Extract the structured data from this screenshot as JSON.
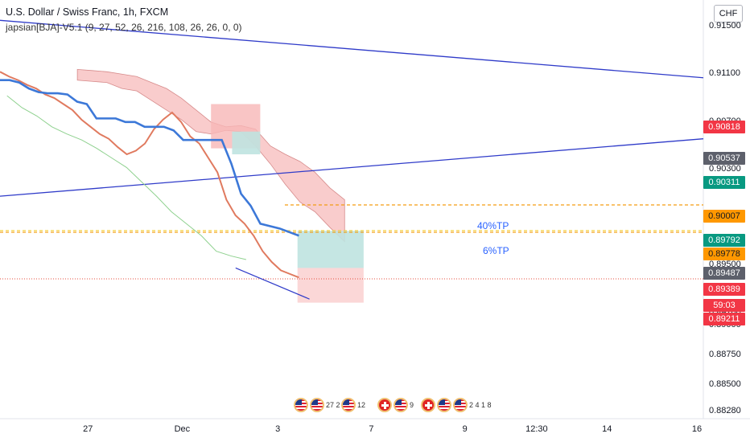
{
  "header": {
    "title": "U.S. Dollar / Swiss Franc, 1h, FXCM",
    "indicator": "japsian[BJA]-V5.1 (9, 27, 52, 26, 216, 108, 26, 26, 0, 0)"
  },
  "currency_button": "CHF",
  "colors": {
    "trend_line": "#2f3bc9",
    "price_line": "#e07a5f",
    "kijun_line": "#3c78d8",
    "cloud_bear": "#f7b6b6",
    "cloud_bull": "#a5d6a7",
    "tp_line": "#f39c12",
    "current_line": "#e74c3c",
    "badge_red": "#f23645",
    "badge_gray": "#5d606b",
    "badge_green": "#089981",
    "badge_orange": "#ff9800"
  },
  "chart_data": {
    "type": "line",
    "ylim": [
      0.8822,
      0.9172
    ],
    "y_ticks": [
      "0.91500",
      "0.91100",
      "0.90700",
      "0.90300",
      "0.89900",
      "0.89500",
      "0.89100",
      "0.89000",
      "0.88750",
      "0.88500",
      "0.88280"
    ],
    "x_ticks": [
      {
        "label": "27",
        "t": 0.125
      },
      {
        "label": "Dec",
        "t": 0.259
      },
      {
        "label": "3",
        "t": 0.395
      },
      {
        "label": "7",
        "t": 0.528
      },
      {
        "label": "9",
        "t": 0.661
      },
      {
        "label": "12:30",
        "t": 0.763
      },
      {
        "label": "14",
        "t": 0.863
      },
      {
        "label": "16",
        "t": 0.991
      }
    ],
    "price_badges": [
      {
        "value": "0.90818",
        "color": "red"
      },
      {
        "value": "0.90537",
        "color": "gray"
      },
      {
        "value": "0.90311",
        "color": "green"
      },
      {
        "value": "0.90007",
        "color": "orange"
      },
      {
        "value": "0.89792",
        "color": "green"
      },
      {
        "value": "0.89778",
        "color": "orange"
      },
      {
        "value": "0.89487",
        "color": "gray"
      },
      {
        "value": "0.89389",
        "color": "red"
      },
      {
        "value": "59:03",
        "color": "red"
      },
      {
        "value": "0.89211",
        "color": "red"
      }
    ],
    "annotations": [
      "40%TP",
      "6%TP"
    ],
    "price_series": [
      0.9112,
      0.9108,
      0.9105,
      0.9101,
      0.9098,
      0.9093,
      0.909,
      0.9085,
      0.908,
      0.9072,
      0.9066,
      0.906,
      0.9056,
      0.9049,
      0.9043,
      0.9046,
      0.9052,
      0.9064,
      0.9072,
      0.9078,
      0.907,
      0.9058,
      0.9052,
      0.904,
      0.9028,
      0.9005,
      0.8992,
      0.8985,
      0.8975,
      0.8962,
      0.8953,
      0.8946,
      0.8943,
      0.894
    ],
    "kijun_series": [
      0.9105,
      0.9105,
      0.9103,
      0.9098,
      0.9095,
      0.9094,
      0.9094,
      0.9093,
      0.9087,
      0.9085,
      0.9073,
      0.9073,
      0.9073,
      0.907,
      0.907,
      0.9066,
      0.9066,
      0.9066,
      0.9063,
      0.9055,
      0.9055,
      0.9055,
      0.9055,
      0.9055,
      0.9035,
      0.901,
      0.9,
      0.8985,
      0.8983,
      0.8981,
      0.8978,
      0.8975
    ],
    "lagging_series": [
      0.9092,
      0.9082,
      0.9075,
      0.9066,
      0.906,
      0.9055,
      0.9048,
      0.904,
      0.9032,
      0.902,
      0.9008,
      0.8995,
      0.8985,
      0.8975,
      0.8962,
      0.8958,
      0.8955
    ],
    "cloud": {
      "upper": [
        0.9114,
        0.9113,
        0.9112,
        0.911,
        0.9108,
        0.9103,
        0.9098,
        0.909,
        0.908,
        0.907,
        0.9066,
        0.9067,
        0.9064,
        0.905,
        0.9043,
        0.9037,
        0.9028,
        0.9015,
        0.9005
      ],
      "lower": [
        0.9105,
        0.9104,
        0.9103,
        0.9098,
        0.9096,
        0.9088,
        0.908,
        0.9072,
        0.9062,
        0.906,
        0.9063,
        0.9062,
        0.905,
        0.9035,
        0.9018,
        0.9003,
        0.8995,
        0.8982,
        0.897
      ]
    },
    "trend_lines": [
      {
        "from": [
          0.0,
          0.9155
        ],
        "to": [
          1.0,
          0.9107
        ]
      },
      {
        "from": [
          0.0,
          0.9008
        ],
        "to": [
          1.0,
          0.9056
        ]
      }
    ],
    "tp_levels": [
      0.90007,
      0.89792,
      0.89778
    ],
    "current_price": 0.89389
  },
  "events": [
    {
      "flags": [
        "us",
        "us"
      ],
      "count": "27 2"
    },
    {
      "flags": [
        "us"
      ],
      "count": "12"
    },
    {
      "flags": [
        "ch",
        "us"
      ],
      "count": "9"
    },
    {
      "flags": [
        "ch",
        "us",
        "us"
      ],
      "count": "2 4 1 8"
    }
  ]
}
